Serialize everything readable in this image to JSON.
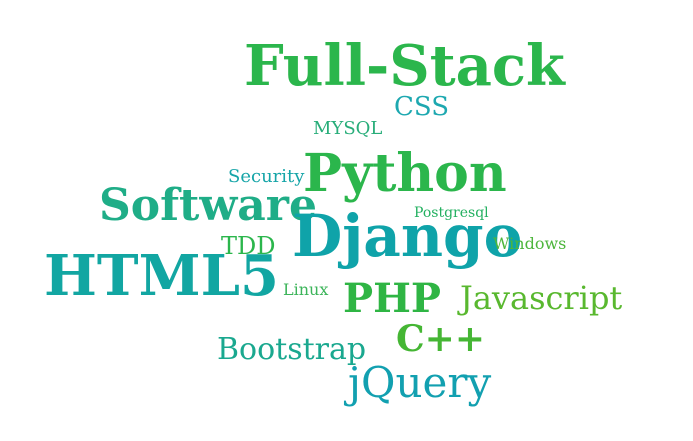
{
  "words": [
    {
      "text": "Full-Stack",
      "color": "#2bb64c"
    },
    {
      "text": "CSS",
      "color": "#1da8b0"
    },
    {
      "text": "MYSQL",
      "color": "#27ad79"
    },
    {
      "text": "Python",
      "color": "#2bb64c"
    },
    {
      "text": "Security",
      "color": "#16a5a8"
    },
    {
      "text": "Software",
      "color": "#1fad87"
    },
    {
      "text": "Postgresql",
      "color": "#23b060"
    },
    {
      "text": "Django",
      "color": "#0fa3a9"
    },
    {
      "text": "TDD",
      "color": "#2bb64c"
    },
    {
      "text": "Windows",
      "color": "#4db63c"
    },
    {
      "text": "HTML5",
      "color": "#12a6a2"
    },
    {
      "text": "Linux",
      "color": "#3cb45a"
    },
    {
      "text": "PHP",
      "color": "#2fb544"
    },
    {
      "text": "Javascript",
      "color": "#59b82f"
    },
    {
      "text": "C++",
      "color": "#45b634"
    },
    {
      "text": "Bootstrap",
      "color": "#1aa88f"
    },
    {
      "text": "jQuery",
      "color": "#12a0b0"
    }
  ]
}
